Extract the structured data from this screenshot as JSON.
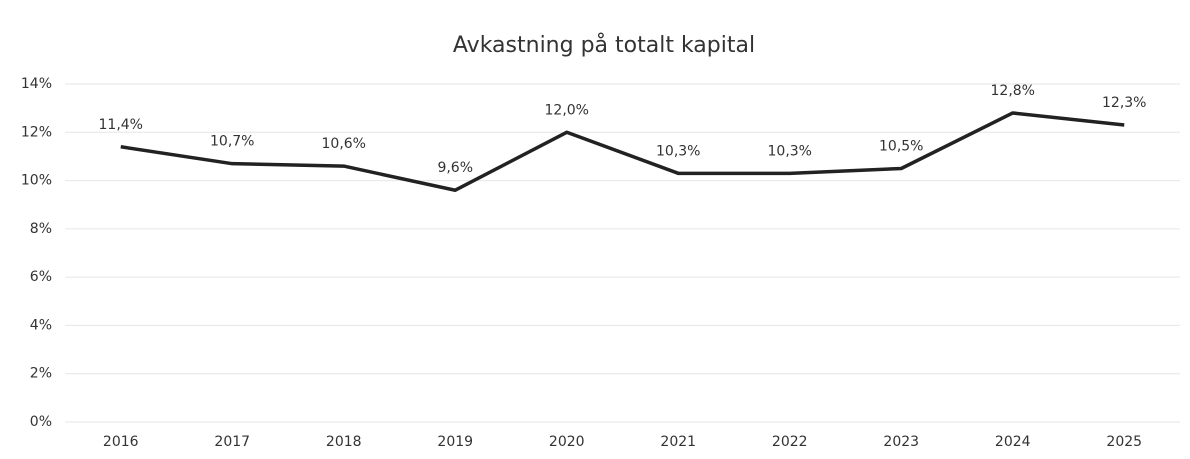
{
  "chart_data": {
    "type": "line",
    "title": "Avkastning på totalt kapital",
    "categories": [
      "2016",
      "2017",
      "2018",
      "2019",
      "2020",
      "2021",
      "2022",
      "2023",
      "2024",
      "2025"
    ],
    "series": [
      {
        "name": "Avkastning på totalt kapital",
        "color": "#222222",
        "values": [
          11.4,
          10.7,
          10.6,
          9.6,
          12.0,
          10.3,
          10.3,
          10.5,
          12.8,
          12.3
        ],
        "value_labels": [
          "11,4%",
          "10,7%",
          "10,6%",
          "9,6%",
          "12,0%",
          "10,3%",
          "10,3%",
          "10,5%",
          "12,8%",
          "12,3%"
        ]
      }
    ],
    "ylim": [
      0,
      14
    ],
    "yticks": [
      {
        "value": 0,
        "label": "0%"
      },
      {
        "value": 2,
        "label": "2%"
      },
      {
        "value": 4,
        "label": "4%"
      },
      {
        "value": 6,
        "label": "6%"
      },
      {
        "value": 8,
        "label": "8%"
      },
      {
        "value": 10,
        "label": "10%"
      },
      {
        "value": 12,
        "label": "12%"
      },
      {
        "value": 14,
        "label": "14%"
      }
    ],
    "grid": true
  }
}
